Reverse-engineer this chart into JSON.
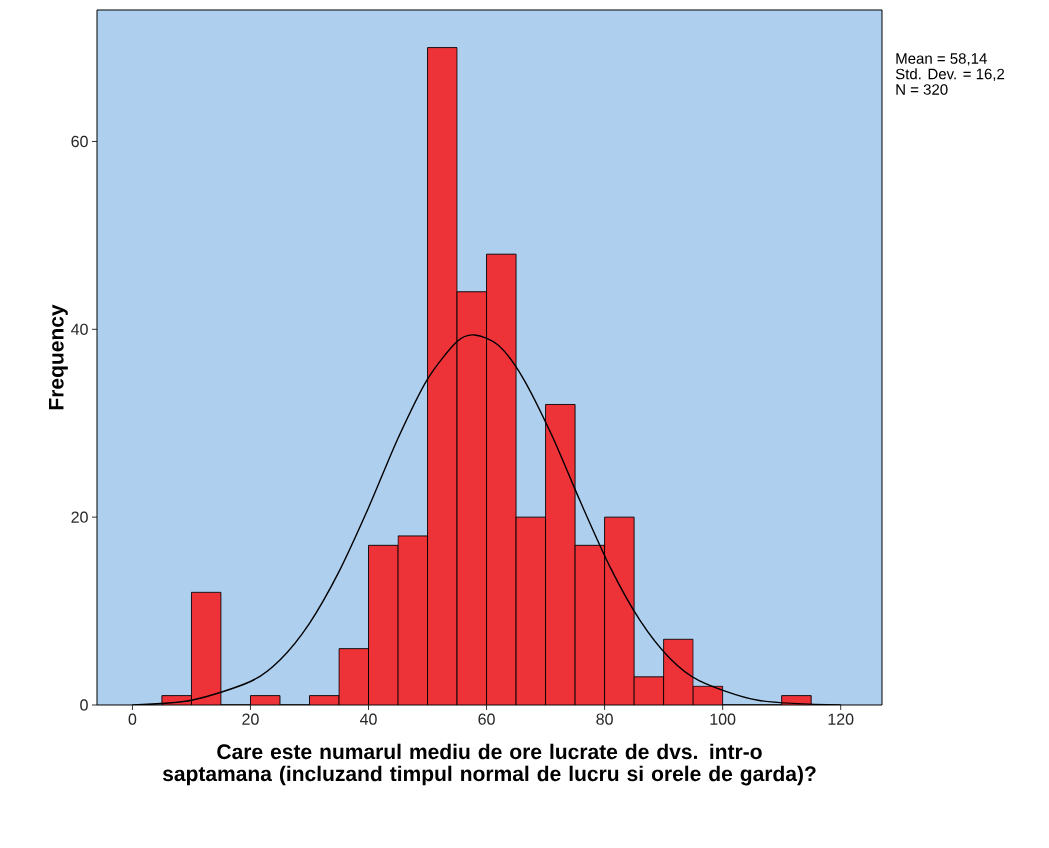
{
  "chart_data": {
    "type": "histogram",
    "xlabel": "Care este numarul mediu de ore lucrate de dvs. intr-o saptamana (incluzand timpul normal de lucru si orele de garda)?",
    "ylabel": "Frequency",
    "bins": [
      5,
      10,
      15,
      20,
      25,
      30,
      35,
      40,
      45,
      50,
      55,
      60,
      65,
      70,
      75,
      80,
      85,
      90,
      95,
      100,
      105,
      110,
      115
    ],
    "values": [
      1,
      12,
      0,
      1,
      0,
      1,
      6,
      17,
      18,
      70,
      44,
      48,
      20,
      32,
      17,
      20,
      3,
      7,
      2,
      0,
      0,
      1
    ],
    "color": "#ee3338",
    "series": [
      {
        "type": "line",
        "color": "#000000",
        "x": [
          0,
          10,
          20,
          25,
          30,
          35,
          40,
          45,
          50,
          55,
          58,
          62,
          66,
          71,
          76,
          81,
          86,
          91,
          96,
          106,
          120
        ],
        "values": [
          0,
          0.5,
          2.5,
          4.8,
          8.7,
          14.2,
          21,
          28.4,
          34.7,
          38.7,
          39.4,
          38.3,
          35,
          28.8,
          21.5,
          14.6,
          9,
          5,
          2.6,
          0.5,
          0
        ]
      }
    ],
    "xlim": [
      -6,
      127
    ],
    "ylim": [
      0,
      74
    ],
    "xticks": [
      0,
      20,
      40,
      60,
      80,
      100,
      120
    ],
    "yticks": [
      0,
      20,
      40,
      60
    ],
    "annotations": [
      "Mean = 58,14",
      "Std. Dev. = 16,2",
      "N = 320"
    ]
  }
}
